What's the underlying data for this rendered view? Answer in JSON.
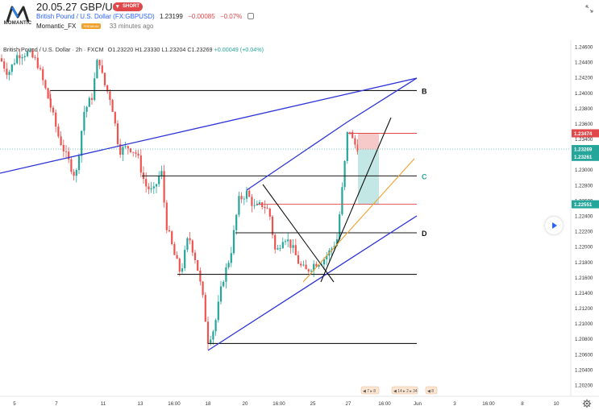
{
  "header": {
    "title": "20.05.27 GBP/USD",
    "badge": "SHORT",
    "symbol": "British Pound / U.S. Dollar (FX:GBPUSD)",
    "price": "1.23199",
    "change": "−0.00085",
    "change_pct": "−0.07%",
    "author": "Momantic_FX",
    "premium": "PREMIUM",
    "time_ago": "33 minutes ago",
    "logo_text": "MOMANTIC"
  },
  "legend": {
    "name": "British Pound / U.S. Dollar · 2h · FXCM",
    "open": "O1.23220",
    "high": "H1.23330",
    "low": "L1.23204",
    "close": "C1.23269",
    "chg": "+0.00049 (+0.04%)"
  },
  "chart_data": {
    "type": "candlestick",
    "symbol": "GBPUSD",
    "timeframe": "2h",
    "y_ticks": [
      "1.24600",
      "1.24400",
      "1.24200",
      "1.24000",
      "1.23800",
      "1.23600",
      "1.23400",
      "1.23200",
      "1.23000",
      "1.22800",
      "1.22600",
      "1.22400",
      "1.22200",
      "1.22000",
      "1.21800",
      "1.21600",
      "1.21400",
      "1.21200",
      "1.21000",
      "1.20800",
      "1.20600",
      "1.20400",
      "1.20200"
    ],
    "x_ticks": [
      "5",
      "7",
      "11",
      "13",
      "16:00",
      "18",
      "20",
      "16:00",
      "25",
      "27",
      "16:00",
      "Jun",
      "3",
      "16:00",
      "8",
      "10"
    ],
    "ylim": [
      1.2015,
      1.2468
    ],
    "price_labels": [
      {
        "value": "1.23474",
        "color": "#e0484b"
      },
      {
        "value": "1.23269",
        "color": "#26a69a"
      },
      {
        "value": "1.23261",
        "color": "#26a69a"
      },
      {
        "value": "1.22551",
        "color": "#26a69a"
      }
    ],
    "level_labels": [
      "B",
      "C",
      "D"
    ],
    "level_prices": {
      "B": 1.2403,
      "C": 1.2292,
      "D": 1.2218,
      "low_zone": 1.2164,
      "bottom": 1.2074
    },
    "trade": {
      "entry": 1.23261,
      "stop": 1.23474,
      "target": 1.22551
    },
    "colors": {
      "up": "#26a69a",
      "down": "#ef5350",
      "channel": "#2f35d8",
      "fib": "#f0a12e",
      "level": "#1a1a1a",
      "target_line": "#e0484b"
    },
    "indicators": [
      "◀ 7 ▸ 8",
      "◀ 14 ▸ 2 ▸ 34",
      "◀ 8"
    ]
  }
}
